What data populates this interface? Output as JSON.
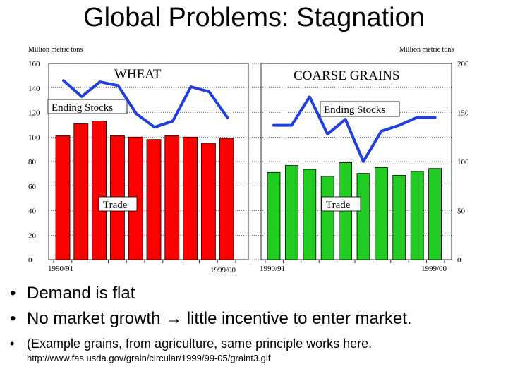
{
  "title": "Global Problems: Stagnation",
  "chart_data": [
    {
      "type": "bar",
      "title": "WHEAT",
      "ylabel": "Million metric tons",
      "ylim": [
        0,
        160
      ],
      "yticks": [
        "160",
        "140",
        "120",
        "100",
        "80",
        "60",
        "40",
        "20",
        "0"
      ],
      "x_first_label": "1990/91",
      "x_last_label": "1999/00",
      "series": [
        {
          "name": "Trade",
          "type": "bar",
          "color": "#ff0000",
          "values": [
            101,
            111,
            113,
            101,
            100,
            98,
            101,
            100,
            95,
            99
          ]
        },
        {
          "name": "Ending Stocks",
          "type": "line",
          "color": "#1f3fe0",
          "values": [
            146,
            133,
            145,
            142,
            119,
            108,
            113,
            141,
            137,
            116
          ]
        }
      ],
      "annotations": [
        "Ending Stocks",
        "Trade"
      ]
    },
    {
      "type": "bar",
      "title": "COARSE GRAINS",
      "ylabel": "Million metric tons",
      "ylim": [
        0,
        200
      ],
      "yticks": [
        "200",
        "150",
        "100",
        "50",
        "0"
      ],
      "x_first_label": "1990/91",
      "x_last_label": "1999/00",
      "series": [
        {
          "name": "Trade",
          "type": "bar",
          "color": "#22cc22",
          "values": [
            89,
            96,
            92,
            85,
            99,
            88,
            94,
            86,
            90,
            93
          ]
        },
        {
          "name": "Ending Stocks",
          "type": "line",
          "color": "#1f3fe0",
          "values": [
            137,
            137,
            166,
            128,
            143,
            100,
            131,
            137,
            145,
            145
          ]
        }
      ],
      "annotations": [
        "Ending Stocks",
        "Trade"
      ]
    }
  ],
  "bullets": {
    "b1": "Demand is flat",
    "b2": "No market growth → little incentive to enter market.",
    "b3": "(Example grains, from agriculture, same principle works here.",
    "url": "http://www.fas.usda.gov/grain/circular/1999/99-05/graint3.gif"
  }
}
